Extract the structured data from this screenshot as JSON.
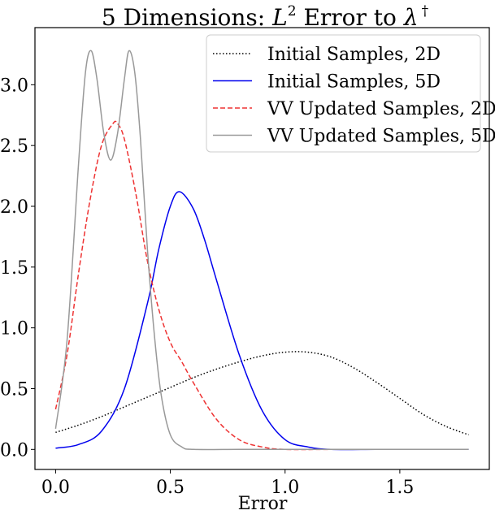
{
  "chart_data": {
    "type": "line",
    "title": {
      "prefix": "5 Dimensions: ",
      "math_base": "L",
      "math_sup": "2",
      "middle": " Error to ",
      "lambda": "λ",
      "dagger": "†"
    },
    "xlabel": "Error",
    "ylabel": "",
    "xlim": [
      -0.09,
      1.89
    ],
    "ylim": [
      -0.165,
      3.47
    ],
    "xticks": [
      0.0,
      0.5,
      1.0,
      1.5
    ],
    "xtick_labels": [
      "0.0",
      "0.5",
      "1.0",
      "1.5"
    ],
    "yticks": [
      0.0,
      0.5,
      1.0,
      1.5,
      2.0,
      2.5,
      3.0
    ],
    "ytick_labels": [
      "0.0",
      "0.5",
      "1.0",
      "1.5",
      "2.0",
      "2.5",
      "3.0"
    ],
    "grid": false,
    "legend_position": "top-right",
    "series": [
      {
        "name": "Initial Samples, 2D",
        "color": "#000000",
        "style": "dotted",
        "x": [
          0.0,
          0.1,
          0.2,
          0.3,
          0.4,
          0.5,
          0.6,
          0.7,
          0.8,
          0.9,
          1.0,
          1.1,
          1.2,
          1.3,
          1.4,
          1.5,
          1.6,
          1.7,
          1.8
        ],
        "y": [
          0.14,
          0.2,
          0.27,
          0.35,
          0.43,
          0.51,
          0.59,
          0.66,
          0.72,
          0.77,
          0.8,
          0.8,
          0.76,
          0.67,
          0.55,
          0.42,
          0.29,
          0.19,
          0.12
        ]
      },
      {
        "name": "Initial Samples, 5D",
        "color": "#0000ee",
        "style": "solid",
        "x": [
          0.0,
          0.1,
          0.2,
          0.3,
          0.4,
          0.45,
          0.5,
          0.54,
          0.6,
          0.65,
          0.7,
          0.8,
          0.9,
          1.0,
          1.1,
          1.2,
          1.4,
          1.6,
          1.8
        ],
        "y": [
          0.01,
          0.04,
          0.15,
          0.5,
          1.2,
          1.65,
          2.0,
          2.12,
          1.98,
          1.72,
          1.4,
          0.78,
          0.32,
          0.08,
          0.02,
          0.0,
          0.0,
          0.0,
          0.0
        ]
      },
      {
        "name": "VV Updated Samples, 2D",
        "color": "#ee3333",
        "style": "dashed",
        "x": [
          0.0,
          0.05,
          0.1,
          0.15,
          0.2,
          0.25,
          0.27,
          0.3,
          0.35,
          0.4,
          0.45,
          0.5,
          0.55,
          0.6,
          0.7,
          0.8,
          0.9,
          1.0,
          1.2,
          1.4,
          1.6,
          1.8
        ],
        "y": [
          0.33,
          0.78,
          1.45,
          2.05,
          2.5,
          2.68,
          2.68,
          2.55,
          2.1,
          1.55,
          1.15,
          0.88,
          0.72,
          0.55,
          0.25,
          0.08,
          0.02,
          0.0,
          0.0,
          0.0,
          0.0,
          0.0
        ]
      },
      {
        "name": "VV Updated Samples, 5D",
        "color": "#999999",
        "style": "solid",
        "x": [
          0.0,
          0.05,
          0.1,
          0.13,
          0.155,
          0.18,
          0.21,
          0.24,
          0.27,
          0.3,
          0.32,
          0.345,
          0.37,
          0.4,
          0.43,
          0.46,
          0.5,
          0.55,
          0.6,
          0.8,
          1.0,
          1.2,
          1.4,
          1.6,
          1.8
        ],
        "y": [
          0.17,
          0.9,
          2.35,
          3.1,
          3.28,
          3.05,
          2.6,
          2.38,
          2.6,
          3.05,
          3.28,
          3.1,
          2.55,
          1.65,
          0.95,
          0.45,
          0.12,
          0.02,
          0.0,
          0.0,
          0.0,
          0.0,
          0.0,
          0.0,
          0.0
        ]
      }
    ]
  }
}
